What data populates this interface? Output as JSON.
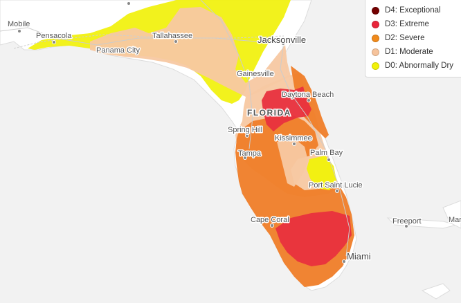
{
  "map": {
    "state_label": "FLORIDA",
    "cities": {
      "mobile": "Mobile",
      "pensacola": "Pensacola",
      "panama_city": "Panama City",
      "tallahassee": "Tallahassee",
      "jacksonville": "Jacksonville",
      "gainesville": "Gainesville",
      "daytona_beach": "Daytona Beach",
      "spring_hill": "Spring Hill",
      "tampa": "Tampa",
      "kissimmee": "Kissimmee",
      "palm_bay": "Palm Bay",
      "port_saint_lucie": "Port Saint Lucie",
      "cape_coral": "Cape Coral",
      "miami": "Miami",
      "freeport": "Freeport",
      "marsh": "Mar"
    }
  },
  "legend": {
    "items": [
      {
        "label": "D4: Exceptional",
        "color": "#730000"
      },
      {
        "label": "D3: Extreme",
        "color": "#e60000"
      },
      {
        "label": "D2: Severe",
        "color": "#ffaa00"
      },
      {
        "label": "D1: Moderate",
        "color": "#fcd37f"
      },
      {
        "label": "D0: Abnormally Dry",
        "color": "#ffff00"
      }
    ]
  },
  "colors": {
    "d0": "#f1f10a",
    "d1": "#f7c8a2",
    "d2": "#ef7d28",
    "d3": "#e8303e",
    "land": "#ffffff",
    "water": "#f2f2f2",
    "legend_d2": "#f08a1c",
    "legend_d1": "#f6c39b",
    "legend_d3": "#e8253a"
  }
}
